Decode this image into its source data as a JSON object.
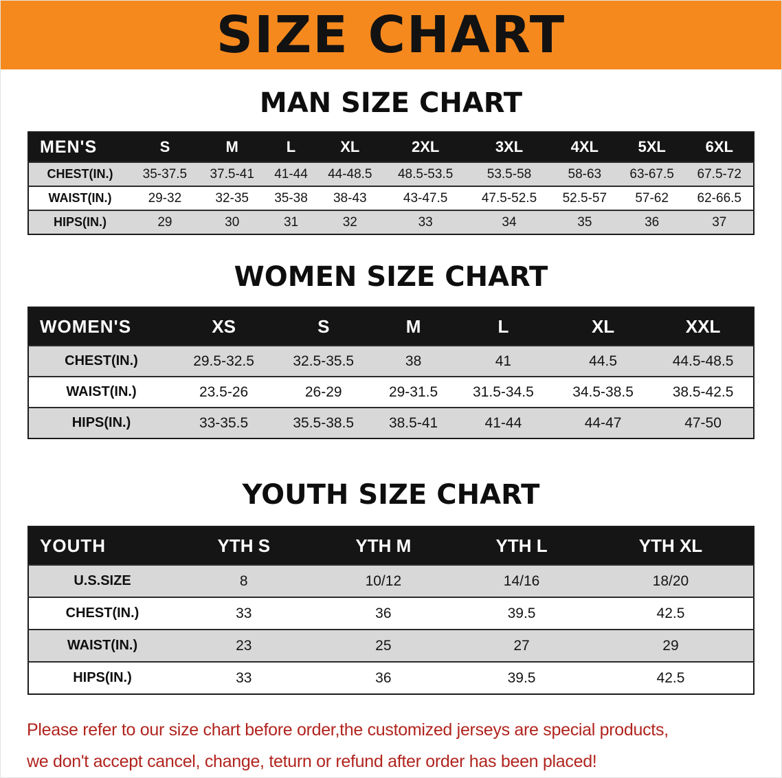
{
  "banner": {
    "title": "SIZE CHART"
  },
  "chart_data": [
    {
      "type": "table",
      "title": "MAN SIZE CHART",
      "columns": [
        "MEN'S",
        "S",
        "M",
        "L",
        "XL",
        "2XL",
        "3XL",
        "4XL",
        "5XL",
        "6XL"
      ],
      "rows": [
        [
          "CHEST(IN.)",
          "35-37.5",
          "37.5-41",
          "41-44",
          "44-48.5",
          "48.5-53.5",
          "53.5-58",
          "58-63",
          "63-67.5",
          "67.5-72"
        ],
        [
          "WAIST(IN.)",
          "29-32",
          "32-35",
          "35-38",
          "38-43",
          "43-47.5",
          "47.5-52.5",
          "52.5-57",
          "57-62",
          "62-66.5"
        ],
        [
          "HIPS(IN.)",
          "29",
          "30",
          "31",
          "32",
          "33",
          "34",
          "35",
          "36",
          "37"
        ]
      ]
    },
    {
      "type": "table",
      "title": "WOMEN SIZE CHART",
      "columns": [
        "WOMEN'S",
        "XS",
        "S",
        "M",
        "L",
        "XL",
        "XXL"
      ],
      "rows": [
        [
          "CHEST(IN.)",
          "29.5-32.5",
          "32.5-35.5",
          "38",
          "41",
          "44.5",
          "44.5-48.5"
        ],
        [
          "WAIST(IN.)",
          "23.5-26",
          "26-29",
          "29-31.5",
          "31.5-34.5",
          "34.5-38.5",
          "38.5-42.5"
        ],
        [
          "HIPS(IN.)",
          "33-35.5",
          "35.5-38.5",
          "38.5-41",
          "41-44",
          "44-47",
          "47-50"
        ]
      ]
    },
    {
      "type": "table",
      "title": "YOUTH SIZE CHART",
      "columns": [
        "YOUTH",
        "YTH S",
        "YTH M",
        "YTH L",
        "YTH XL"
      ],
      "rows": [
        [
          "U.S.SIZE",
          "8",
          "10/12",
          "14/16",
          "18/20"
        ],
        [
          "CHEST(IN.)",
          "33",
          "36",
          "39.5",
          "42.5"
        ],
        [
          "WAIST(IN.)",
          "23",
          "25",
          "27",
          "29"
        ],
        [
          "HIPS(IN.)",
          "33",
          "36",
          "39.5",
          "42.5"
        ]
      ]
    }
  ],
  "footer": {
    "line1": "Please refer to our size chart before order,the customized jerseys are special products,",
    "line2": "we don't accept cancel, change, teturn or refund after order has been placed!"
  },
  "colors": {
    "banner_bg": "#f6891e",
    "table_header_bg": "#151515",
    "table_border": "#1b1b1b",
    "row_alt_bg": "#d8d8d8",
    "note_red": "#b1241e"
  }
}
